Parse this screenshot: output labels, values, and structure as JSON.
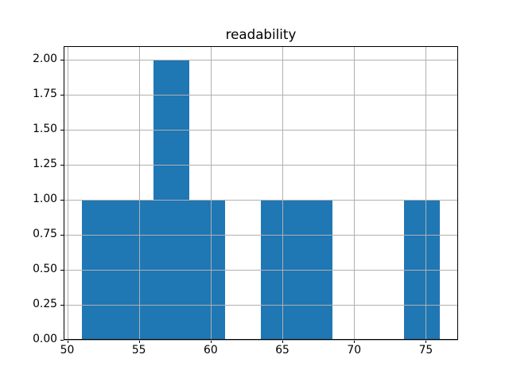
{
  "chart_data": {
    "type": "bar",
    "subtype": "histogram",
    "title": "readability",
    "bin_edges": [
      51,
      53.5,
      56,
      58.5,
      61,
      63.5,
      66,
      68.5,
      71,
      73.5,
      76
    ],
    "counts": [
      1,
      1,
      2,
      1,
      0,
      1,
      1,
      0,
      0,
      1
    ],
    "x_ticks": [
      50,
      55,
      60,
      65,
      70,
      75
    ],
    "x_tick_labels": [
      "50",
      "55",
      "60",
      "65",
      "70",
      "75"
    ],
    "y_ticks": [
      0,
      0.25,
      0.5,
      0.75,
      1,
      1.25,
      1.5,
      1.75,
      2
    ],
    "y_tick_labels": [
      "0.00",
      "0.25",
      "0.50",
      "0.75",
      "1.00",
      "1.25",
      "1.50",
      "1.75",
      "2.00"
    ],
    "xlim": [
      49.75,
      77.25
    ],
    "ylim": [
      0,
      2.1
    ],
    "xlabel": "",
    "ylabel": "",
    "grid": true,
    "legend": "none",
    "colors": {
      "bar": "#1f77b4",
      "grid": "#b0b0b0",
      "spine": "#000000",
      "background": "#ffffff",
      "text": "#000000"
    }
  }
}
